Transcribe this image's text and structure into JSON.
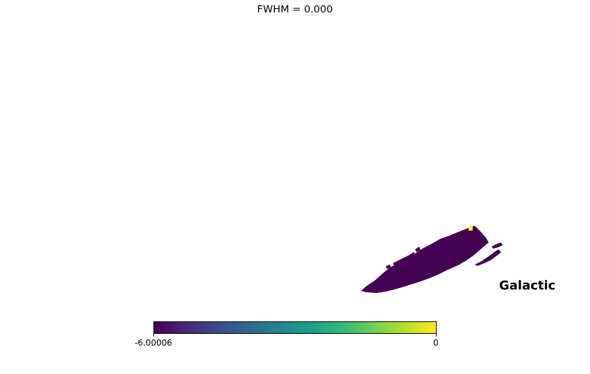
{
  "title": "FWHM = 0.000",
  "coord_system": "Galactic",
  "colorbar": {
    "colormap": "viridis",
    "min_label": "-6.00006",
    "max_label": "0",
    "min": -6.00006,
    "max": 0,
    "stops": [
      "#440154",
      "#482878",
      "#3e4989",
      "#31688e",
      "#26828e",
      "#1f9e89",
      "#35b779",
      "#6ece58",
      "#b5de2b",
      "#fde725"
    ]
  },
  "map": {
    "region_color": "#440154",
    "hot_pixel_color": "#fde725"
  }
}
